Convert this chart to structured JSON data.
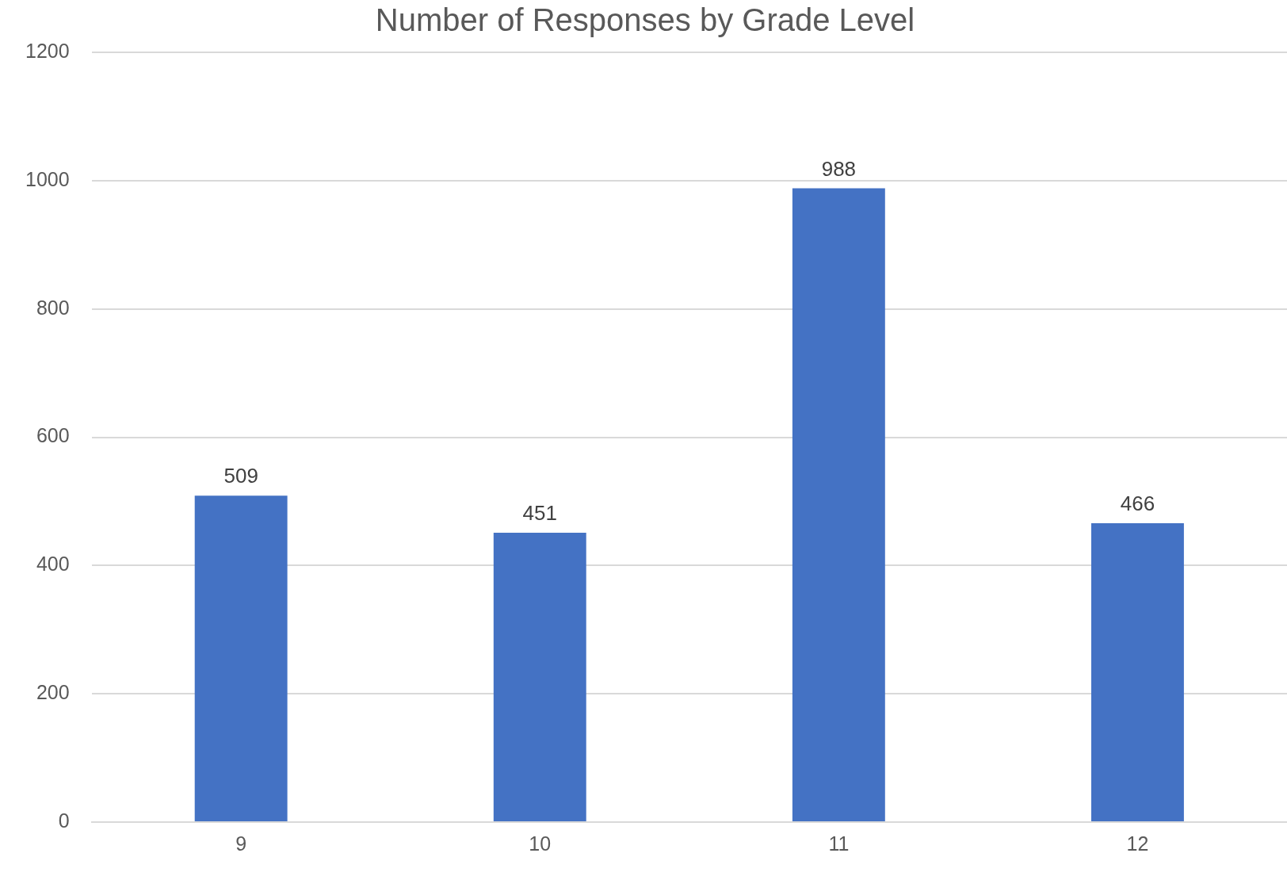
{
  "chart_data": {
    "type": "bar",
    "title": "Number of Responses by Grade Level",
    "categories": [
      "9",
      "10",
      "11",
      "12"
    ],
    "values": [
      509,
      451,
      988,
      466
    ],
    "color": "#4472c4",
    "ylim": [
      0,
      1200
    ],
    "yticks": [
      0,
      200,
      400,
      600,
      800,
      1000,
      1200
    ],
    "grid": "y",
    "data_labels": true
  }
}
